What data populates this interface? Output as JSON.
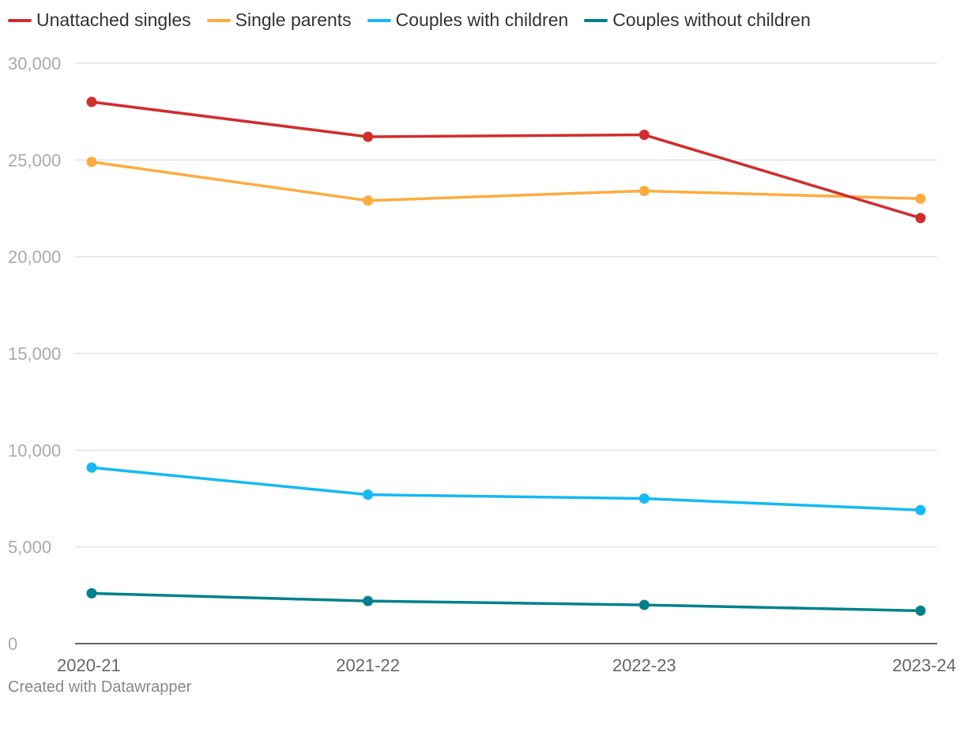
{
  "chart_data": {
    "type": "line",
    "categories": [
      "2020-21",
      "2021-22",
      "2022-23",
      "2023-24"
    ],
    "ylim": [
      0,
      30000
    ],
    "yticks": [
      0,
      5000,
      10000,
      15000,
      20000,
      25000,
      30000
    ],
    "ytick_labels": [
      "0",
      "5,000",
      "10,000",
      "15,000",
      "20,000",
      "25,000",
      "30,000"
    ],
    "grid": true,
    "legend_position": "top-left",
    "series": [
      {
        "name": "Unattached singles",
        "color": "#d12d2d",
        "values": [
          28000,
          26200,
          26300,
          22000
        ]
      },
      {
        "name": "Single parents",
        "color": "#fdac3e",
        "values": [
          24900,
          22900,
          23400,
          23000
        ]
      },
      {
        "name": "Couples with children",
        "color": "#15b9f4",
        "values": [
          9100,
          7700,
          7500,
          6900
        ]
      },
      {
        "name": "Couples without children",
        "color": "#00818a",
        "values": [
          2600,
          2200,
          2000,
          1700
        ]
      }
    ]
  },
  "footer": {
    "credit": "Created with Datawrapper"
  }
}
